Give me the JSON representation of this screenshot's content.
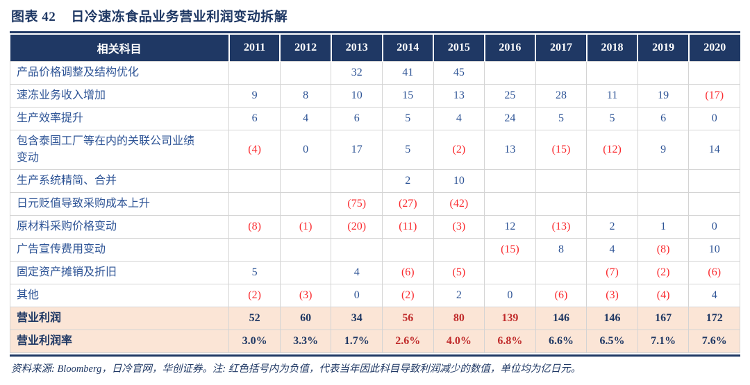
{
  "header": {
    "prefix": "图表 42",
    "title": "日冷速冻食品业务营业利润变动拆解"
  },
  "footnote": "资料来源: Bloomberg，日冷官网，华创证券。注: 红色括号内为负值，代表当年因此科目导致利润减少的数值，单位均为亿日元。",
  "colors": {
    "header_bg": "#1F3864",
    "title_text": "#1F3864",
    "body_text": "#2E5496",
    "negative_red": "#FA2A2E",
    "summary_bg": "#FBE5D6",
    "summary_text": "#1F3864",
    "summary_highlight_red": "#C02B2B",
    "grid": "#D4D4D4"
  },
  "chart_data": {
    "type": "table",
    "title": "图表 42 日冷速冻食品业务营业利润变动拆解",
    "unit": "亿日元",
    "negative_notation": "红色括号内为负值",
    "columns": [
      "相关科目",
      "2011",
      "2012",
      "2013",
      "2014",
      "2015",
      "2016",
      "2017",
      "2018",
      "2019",
      "2020"
    ],
    "rows": [
      {
        "kind": "body",
        "label": "产品价格调整及结构优化",
        "values": [
          "",
          "",
          "32",
          "41",
          "45",
          "",
          "",
          "",
          "",
          ""
        ]
      },
      {
        "kind": "body",
        "label": "速冻业务收入增加",
        "values": [
          "9",
          "8",
          "10",
          "15",
          "13",
          "25",
          "28",
          "11",
          "19",
          "(17)"
        ]
      },
      {
        "kind": "body",
        "label": "生产效率提升",
        "values": [
          "6",
          "4",
          "6",
          "5",
          "4",
          "24",
          "5",
          "5",
          "6",
          "0"
        ]
      },
      {
        "kind": "body",
        "label": "包含泰国工厂等在内的关联公司业绩\n变动",
        "values": [
          "(4)",
          "0",
          "17",
          "5",
          "(2)",
          "13",
          "(15)",
          "(12)",
          "9",
          "14"
        ]
      },
      {
        "kind": "body",
        "label": "生产系统精简、合并",
        "values": [
          "",
          "",
          "",
          "2",
          "10",
          "",
          "",
          "",
          "",
          ""
        ]
      },
      {
        "kind": "body",
        "label": "日元贬值导致采购成本上升",
        "values": [
          "",
          "",
          "(75)",
          "(27)",
          "(42)",
          "",
          "",
          "",
          "",
          ""
        ]
      },
      {
        "kind": "body",
        "label": "原材料采购价格变动",
        "values": [
          "(8)",
          "(1)",
          "(20)",
          "(11)",
          "(3)",
          "12",
          "(13)",
          "2",
          "1",
          "0"
        ]
      },
      {
        "kind": "body",
        "label": "广告宣传费用变动",
        "values": [
          "",
          "",
          "",
          "",
          "",
          "(15)",
          "8",
          "4",
          "(8)",
          "10"
        ]
      },
      {
        "kind": "body",
        "label": "固定资产摊销及折旧",
        "values": [
          "5",
          "",
          "4",
          "(6)",
          "(5)",
          "",
          "",
          "(7)",
          "(2)",
          "(6)"
        ]
      },
      {
        "kind": "body",
        "label": "其他",
        "values": [
          "(2)",
          "(3)",
          "0",
          "(2)",
          "2",
          "0",
          "(6)",
          "(3)",
          "(4)",
          "4"
        ]
      },
      {
        "kind": "summary",
        "label": "营业利润",
        "values": [
          "52",
          "60",
          "34",
          "56",
          "80",
          "139",
          "146",
          "146",
          "167",
          "172"
        ],
        "red_columns": [
          3,
          4,
          5
        ]
      },
      {
        "kind": "summary",
        "label": "营业利润率",
        "values": [
          "3.0%",
          "3.3%",
          "1.7%",
          "2.6%",
          "4.0%",
          "6.8%",
          "6.6%",
          "6.5%",
          "7.1%",
          "7.6%"
        ],
        "red_columns": [
          3,
          4,
          5
        ]
      }
    ]
  }
}
